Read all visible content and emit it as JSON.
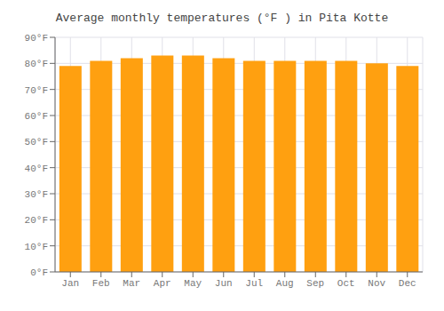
{
  "chart_data": {
    "type": "bar",
    "title": "Average monthly temperatures (°F ) in Pita Kotte",
    "categories": [
      "Jan",
      "Feb",
      "Mar",
      "Apr",
      "May",
      "Jun",
      "Jul",
      "Aug",
      "Sep",
      "Oct",
      "Nov",
      "Dec"
    ],
    "values": [
      79,
      81,
      82,
      83,
      83,
      82,
      81,
      81,
      81,
      81,
      80,
      79
    ],
    "color": "#FFA010",
    "ylim": [
      0,
      90
    ],
    "yticks": [
      {
        "value": 0,
        "label": "0°F"
      },
      {
        "value": 10,
        "label": "10°F"
      },
      {
        "value": 20,
        "label": "20°F"
      },
      {
        "value": 30,
        "label": "30°F"
      },
      {
        "value": 40,
        "label": "40°F"
      },
      {
        "value": 50,
        "label": "50°F"
      },
      {
        "value": 60,
        "label": "60°F"
      },
      {
        "value": 70,
        "label": "70°F"
      },
      {
        "value": 80,
        "label": "80°F"
      },
      {
        "value": 90,
        "label": "90°F"
      }
    ],
    "grid": true
  }
}
